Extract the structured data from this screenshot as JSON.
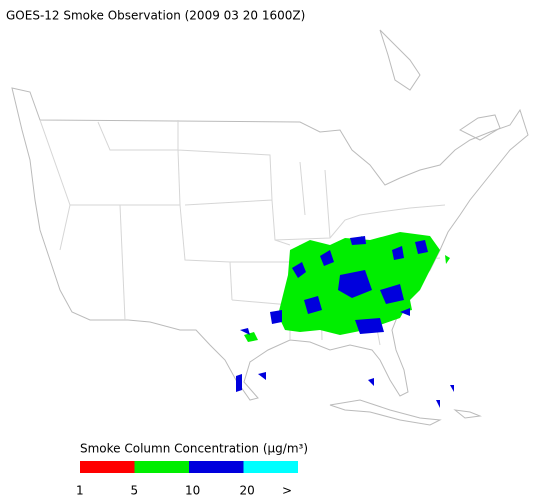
{
  "title": "GOES-12 Smoke Observation (2009 03 20  1600Z)",
  "legend": {
    "title": "Smoke Column Concentration (μg/m³)",
    "bins": [
      {
        "color": "#ff0000"
      },
      {
        "color": "#00ee00"
      },
      {
        "color": "#0000dd"
      },
      {
        "color": "#00ffff"
      }
    ],
    "labels": [
      "1",
      "5",
      "10",
      "20",
      ">"
    ]
  }
}
